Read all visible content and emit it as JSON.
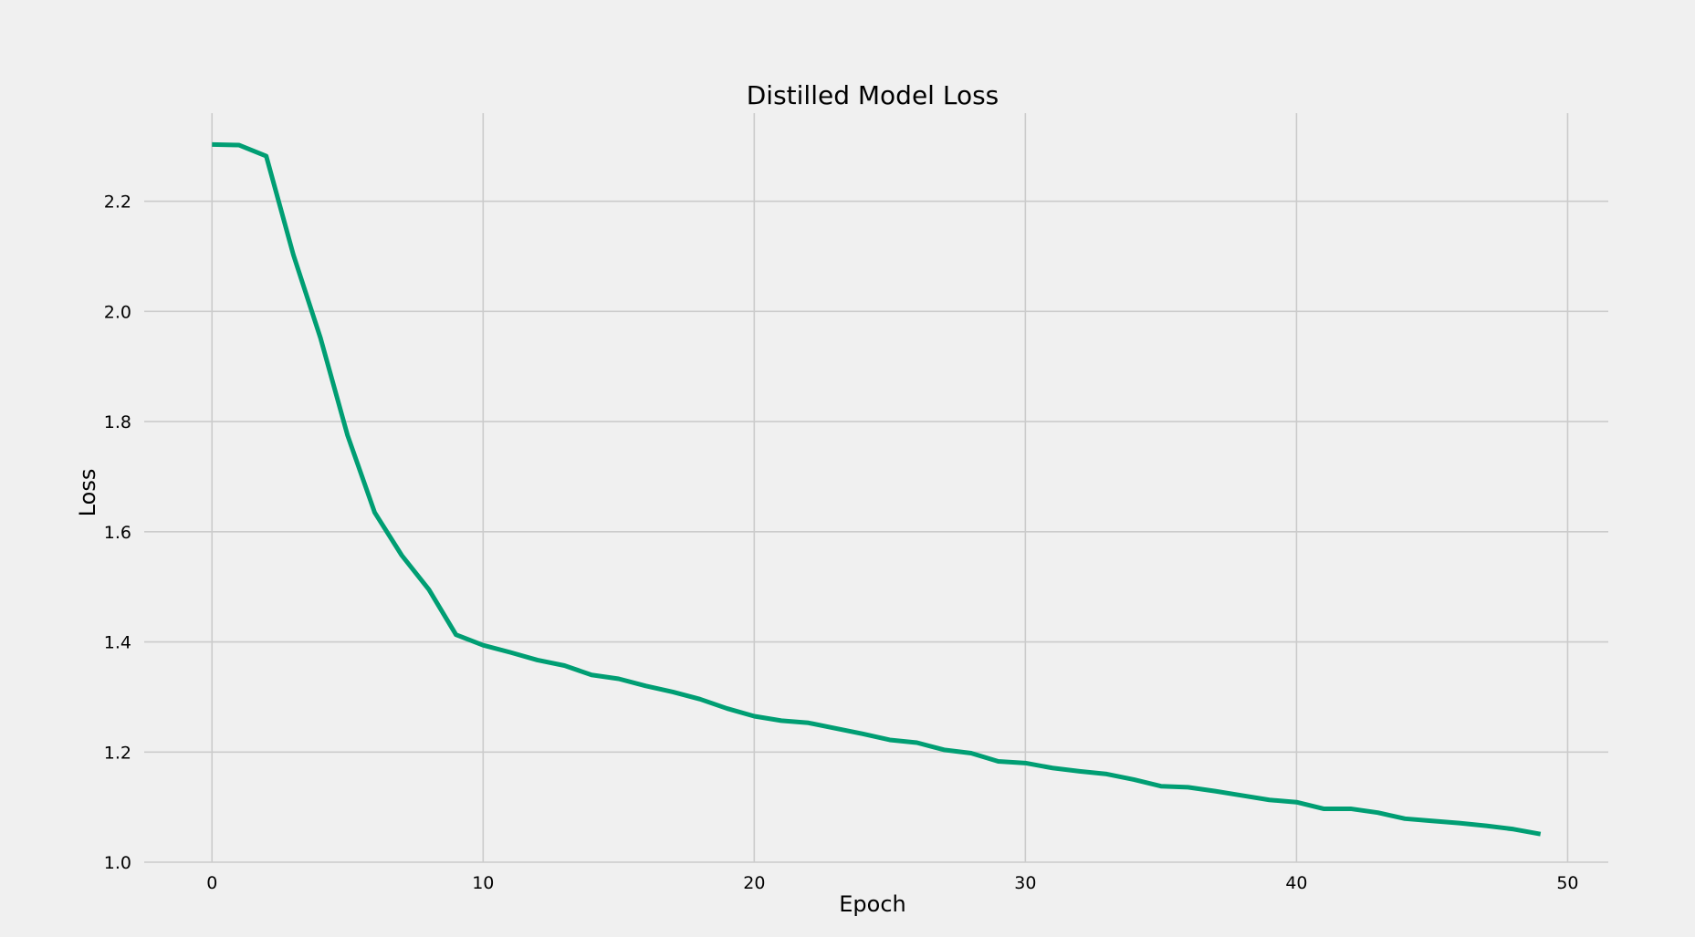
{
  "chart_data": {
    "type": "line",
    "title": "Distilled Model Loss",
    "xlabel": "Epoch",
    "ylabel": "Loss",
    "xlim": [
      -2.5,
      51.5
    ],
    "ylim": [
      1.0,
      2.36
    ],
    "xticks": [
      0,
      10,
      20,
      30,
      40,
      50
    ],
    "yticks": [
      1.0,
      1.2,
      1.4,
      1.6,
      1.8,
      2.0,
      2.2
    ],
    "xtick_labels": [
      "0",
      "10",
      "20",
      "30",
      "40",
      "50"
    ],
    "ytick_labels": [
      "1.0",
      "1.2",
      "1.4",
      "1.6",
      "1.8",
      "2.0",
      "2.2"
    ],
    "grid": true,
    "legend": "none",
    "series": [
      {
        "color": "#009e73",
        "x": [
          0,
          1,
          2,
          3,
          4,
          5,
          6,
          7,
          8,
          9,
          10,
          11,
          12,
          13,
          14,
          15,
          16,
          17,
          18,
          19,
          20,
          21,
          22,
          23,
          24,
          25,
          26,
          27,
          28,
          29,
          30,
          31,
          32,
          33,
          34,
          35,
          36,
          37,
          38,
          39,
          40,
          41,
          42,
          43,
          44,
          45,
          46,
          47,
          48,
          49
        ],
        "y": [
          2.303,
          2.302,
          2.282,
          2.103,
          1.952,
          1.775,
          1.635,
          1.557,
          1.495,
          1.413,
          1.394,
          1.381,
          1.367,
          1.357,
          1.34,
          1.333,
          1.32,
          1.309,
          1.296,
          1.279,
          1.265,
          1.257,
          1.253,
          1.243,
          1.233,
          1.222,
          1.217,
          1.204,
          1.198,
          1.183,
          1.18,
          1.171,
          1.165,
          1.16,
          1.15,
          1.138,
          1.136,
          1.129,
          1.121,
          1.113,
          1.109,
          1.097,
          1.097,
          1.09,
          1.079,
          1.075,
          1.071,
          1.066,
          1.06,
          1.051
        ]
      }
    ]
  }
}
